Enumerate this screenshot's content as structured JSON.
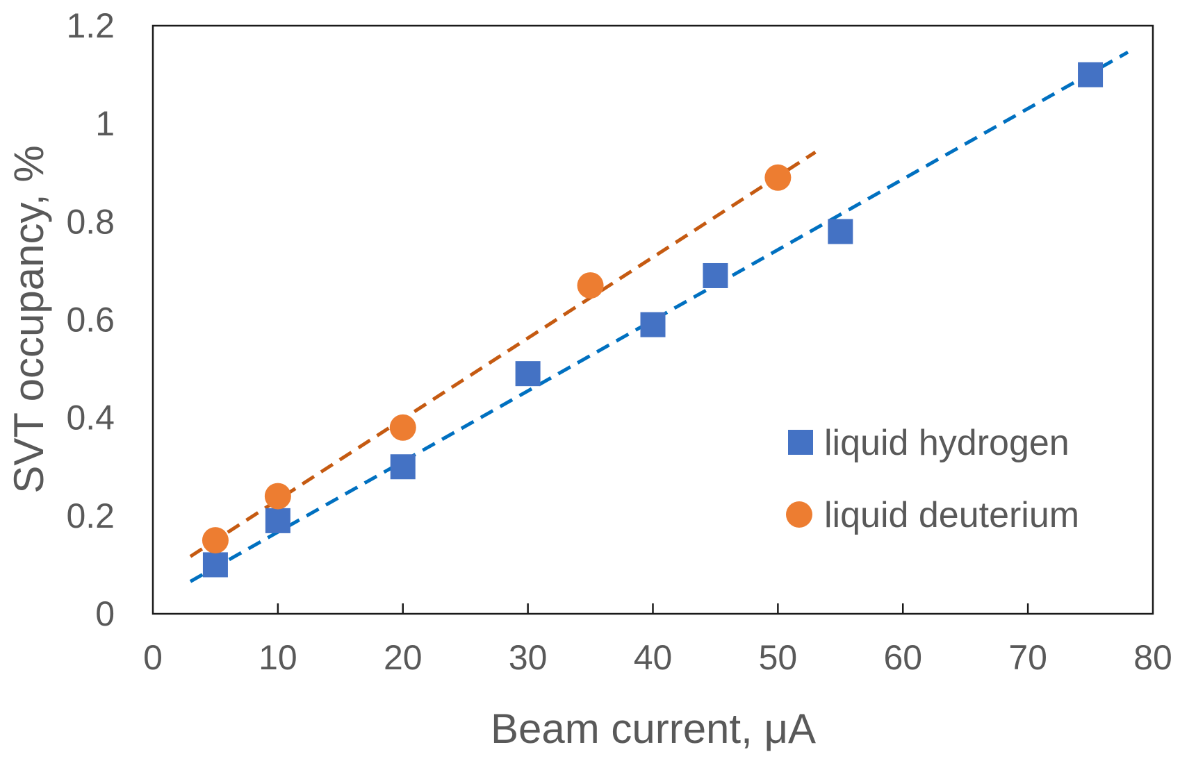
{
  "chart_data": {
    "type": "scatter",
    "xlabel": "Beam current, μA",
    "ylabel": "SVT occupancy, %",
    "xlim": [
      0,
      80
    ],
    "ylim": [
      0,
      1.2
    ],
    "xticks": [
      0,
      10,
      20,
      30,
      40,
      50,
      60,
      70,
      80
    ],
    "yticks": [
      0,
      0.2,
      0.4,
      0.6,
      0.8,
      1,
      1.2
    ],
    "x_tick_labels": [
      "0",
      "10",
      "20",
      "30",
      "40",
      "50",
      "60",
      "70",
      "80"
    ],
    "y_tick_labels": [
      "0",
      "0.2",
      "0.4",
      "0.6",
      "0.8",
      "1",
      "1.2"
    ],
    "grid": false,
    "legend_position": "right",
    "series": [
      {
        "name": "liquid hydrogen",
        "marker": "square",
        "color": "#4472C4",
        "trendline_color": "#0070C0",
        "trendline_style": "dashed",
        "trendline_x": [
          3,
          78
        ],
        "trendline_y": [
          0.066,
          1.146
        ],
        "x": [
          5,
          10,
          20,
          30,
          40,
          45,
          55,
          75
        ],
        "y": [
          0.1,
          0.19,
          0.3,
          0.49,
          0.59,
          0.69,
          0.78,
          1.1
        ]
      },
      {
        "name": "liquid deuterium",
        "marker": "circle",
        "color": "#ED7D31",
        "trendline_color": "#C55A11",
        "trendline_style": "dashed",
        "trendline_x": [
          3,
          53
        ],
        "trendline_y": [
          0.117,
          0.942
        ],
        "x": [
          5,
          10,
          20,
          35,
          50
        ],
        "y": [
          0.15,
          0.24,
          0.38,
          0.67,
          0.89
        ]
      }
    ]
  }
}
